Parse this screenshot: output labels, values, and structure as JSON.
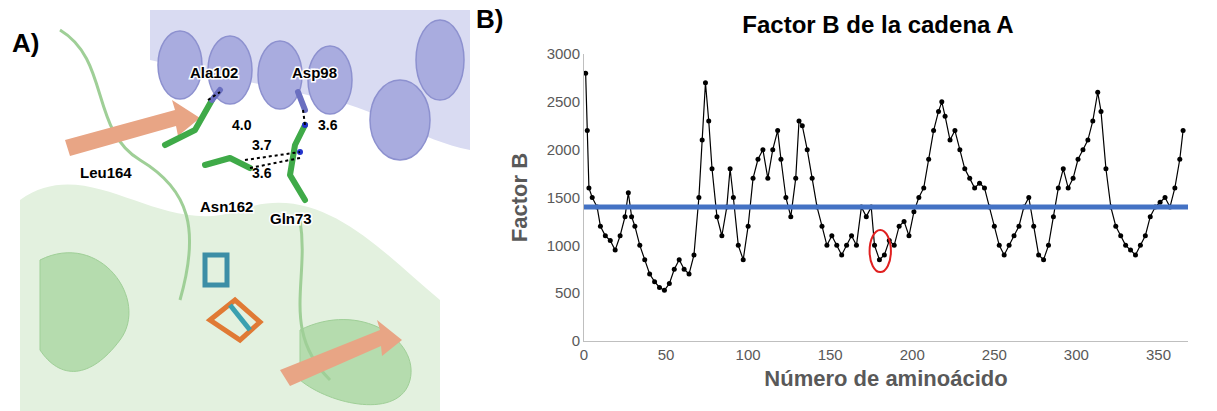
{
  "panel_labels": [
    "A)",
    "B)"
  ],
  "structure": {
    "residues": [
      {
        "label": "Ala102"
      },
      {
        "label": "Asp98"
      },
      {
        "label": "Leu164"
      },
      {
        "label": "Asn162"
      },
      {
        "label": "Gln73"
      }
    ],
    "distances": [
      {
        "value": 4.0,
        "label": "4.0"
      },
      {
        "value": 3.6,
        "label": "3.6"
      },
      {
        "value": 3.7,
        "label": "3.7"
      },
      {
        "value": 3.6,
        "label": "3.6"
      }
    ]
  },
  "chart_data": {
    "type": "line",
    "title": "Factor B de la cadena A",
    "x_label": "Número de aminoácido",
    "y_label": "Factor B",
    "x": [
      1,
      2,
      3,
      5,
      8,
      10,
      13,
      16,
      19,
      22,
      25,
      27,
      29,
      31,
      34,
      37,
      40,
      43,
      46,
      49,
      52,
      55,
      58,
      61,
      64,
      67,
      70,
      72,
      74,
      76,
      78,
      81,
      84,
      87,
      89,
      91,
      94,
      97,
      100,
      103,
      106,
      109,
      112,
      115,
      118,
      120,
      123,
      126,
      129,
      131,
      133,
      136,
      139,
      142,
      145,
      148,
      151,
      154,
      157,
      160,
      163,
      166,
      169,
      172,
      175,
      177,
      180,
      183,
      186,
      189,
      192,
      195,
      198,
      201,
      204,
      207,
      210,
      213,
      216,
      218,
      220,
      223,
      226,
      229,
      232,
      235,
      238,
      241,
      244,
      247,
      250,
      253,
      256,
      259,
      262,
      265,
      268,
      271,
      274,
      277,
      280,
      283,
      286,
      289,
      292,
      295,
      298,
      301,
      304,
      307,
      310,
      313,
      315,
      318,
      321,
      324,
      327,
      330,
      333,
      336,
      339,
      342,
      345,
      348,
      351,
      354,
      357,
      360,
      363,
      365
    ],
    "series": [
      {
        "color": "#000000",
        "marker": "circle",
        "line_style": "solid",
        "values": [
          2800,
          2200,
          1600,
          1500,
          1400,
          1200,
          1100,
          1050,
          950,
          1100,
          1300,
          1550,
          1300,
          1200,
          1000,
          850,
          700,
          620,
          560,
          530,
          600,
          750,
          850,
          750,
          700,
          900,
          1500,
          2100,
          2700,
          2300,
          1800,
          1300,
          1100,
          1400,
          1800,
          1500,
          1000,
          850,
          1200,
          1700,
          1900,
          2000,
          1700,
          2000,
          2200,
          1900,
          1500,
          1300,
          1700,
          2300,
          2250,
          2000,
          1700,
          1400,
          1200,
          1000,
          1100,
          1000,
          900,
          1000,
          1100,
          1000,
          1400,
          1300,
          1400,
          1000,
          850,
          900,
          1050,
          1000,
          1200,
          1250,
          1100,
          1350,
          1500,
          1600,
          1900,
          2200,
          2400,
          2500,
          2350,
          2100,
          2200,
          2000,
          1800,
          1700,
          1600,
          1650,
          1600,
          1400,
          1200,
          1000,
          900,
          1000,
          1100,
          1200,
          1400,
          1500,
          1200,
          900,
          850,
          1000,
          1300,
          1600,
          1800,
          1600,
          1700,
          1900,
          2000,
          2100,
          2300,
          2600,
          2400,
          1800,
          1400,
          1200,
          1100,
          1000,
          950,
          900,
          1000,
          1100,
          1300,
          1400,
          1450,
          1500,
          1400,
          1600,
          1900,
          2200
        ]
      }
    ],
    "hline": {
      "value": 1400,
      "color": "#4472c4"
    },
    "highlight": {
      "x": [
        174,
        187
      ],
      "y": [
        720,
        1160
      ],
      "color": "#e02020"
    },
    "xlim": [
      0,
      368
    ],
    "xticks": [
      0,
      50,
      100,
      150,
      200,
      250,
      300,
      350
    ],
    "ylim": [
      0,
      3000
    ],
    "yticks": [
      0,
      500,
      1000,
      1500,
      2000,
      2500,
      3000
    ],
    "grid": false
  }
}
